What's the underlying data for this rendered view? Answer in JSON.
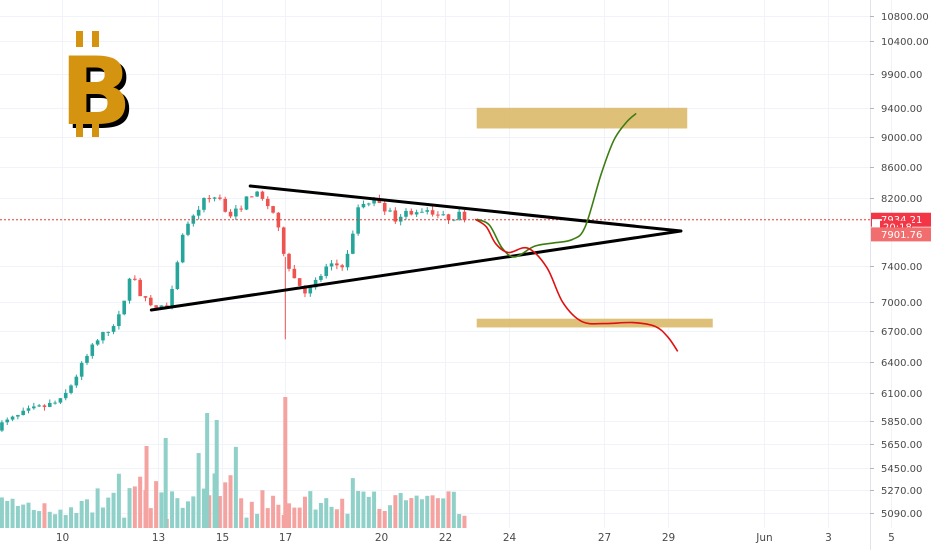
{
  "colors": {
    "up": "#26a69a",
    "down": "#ef5350",
    "volume_up": "#8fd0c8",
    "volume_down": "#f4a3a1",
    "price_line": "#e53935",
    "logo": "#d4940f",
    "target_box": "#d9b562",
    "bull_path": "#3c7d11",
    "bear_path": "#e01010",
    "triangle": "#000000"
  },
  "logo": {
    "symbol": "B",
    "icon": "bitcoin-logo-icon"
  },
  "chart_data": {
    "type": "candlestick",
    "title": "",
    "xlabel": "",
    "ylabel": "",
    "y_axis": {
      "scale": "log",
      "ticks": [
        "10800.00",
        "10400.00",
        "9900.00",
        "9400.00",
        "9000.00",
        "8600.00",
        "8200.00",
        "7400.00",
        "7000.00",
        "6700.00",
        "6400.00",
        "6100.00",
        "5850.00",
        "5650.00",
        "5450.00",
        "5270.00",
        "5090.00"
      ],
      "ylim": [
        5020,
        11000
      ]
    },
    "x_axis": {
      "ticks": [
        "10",
        "13",
        "15",
        "17",
        "20",
        "22",
        "24",
        "27",
        "29",
        "Jun",
        "3",
        "5"
      ]
    },
    "price_tags": [
      {
        "label": "7934.21",
        "value": 7934.21,
        "style": "current"
      },
      {
        "label": "7",
        "value": 7870,
        "style": "small"
      },
      {
        "label": "20:18",
        "value": 7850,
        "style": "timer"
      },
      {
        "label": "7901.76",
        "value": 7760,
        "style": "bid"
      }
    ],
    "current_price": 7934.21,
    "grid": true,
    "annotations": {
      "triangle": [
        {
          "x0": 12.8,
          "y0": 6920,
          "x1": 29.4,
          "y1": 7800
        },
        {
          "x0": 15.9,
          "y0": 8350,
          "x1": 29.4,
          "y1": 7800
        }
      ],
      "target_zones": [
        {
          "x0": 23.0,
          "x1": 29.6,
          "y0": 9110,
          "y1": 9400
        },
        {
          "x0": 23.0,
          "x1": 30.4,
          "y0": 6740,
          "y1": 6830
        }
      ],
      "bull_path": [
        [
          23.0,
          7940
        ],
        [
          23.4,
          7870
        ],
        [
          23.8,
          7600
        ],
        [
          24.2,
          7500
        ],
        [
          24.8,
          7620
        ],
        [
          25.4,
          7660
        ],
        [
          26.0,
          7700
        ],
        [
          26.4,
          7850
        ],
        [
          26.9,
          8500
        ],
        [
          27.3,
          8950
        ],
        [
          27.7,
          9200
        ],
        [
          28.0,
          9320
        ]
      ],
      "bear_path": [
        [
          22.95,
          7940
        ],
        [
          23.3,
          7850
        ],
        [
          23.6,
          7650
        ],
        [
          24.0,
          7550
        ],
        [
          24.6,
          7600
        ],
        [
          25.2,
          7380
        ],
        [
          25.7,
          7000
        ],
        [
          26.3,
          6800
        ],
        [
          27.0,
          6780
        ],
        [
          27.9,
          6790
        ],
        [
          28.6,
          6750
        ],
        [
          29.0,
          6640
        ],
        [
          29.3,
          6500
        ]
      ]
    }
  }
}
